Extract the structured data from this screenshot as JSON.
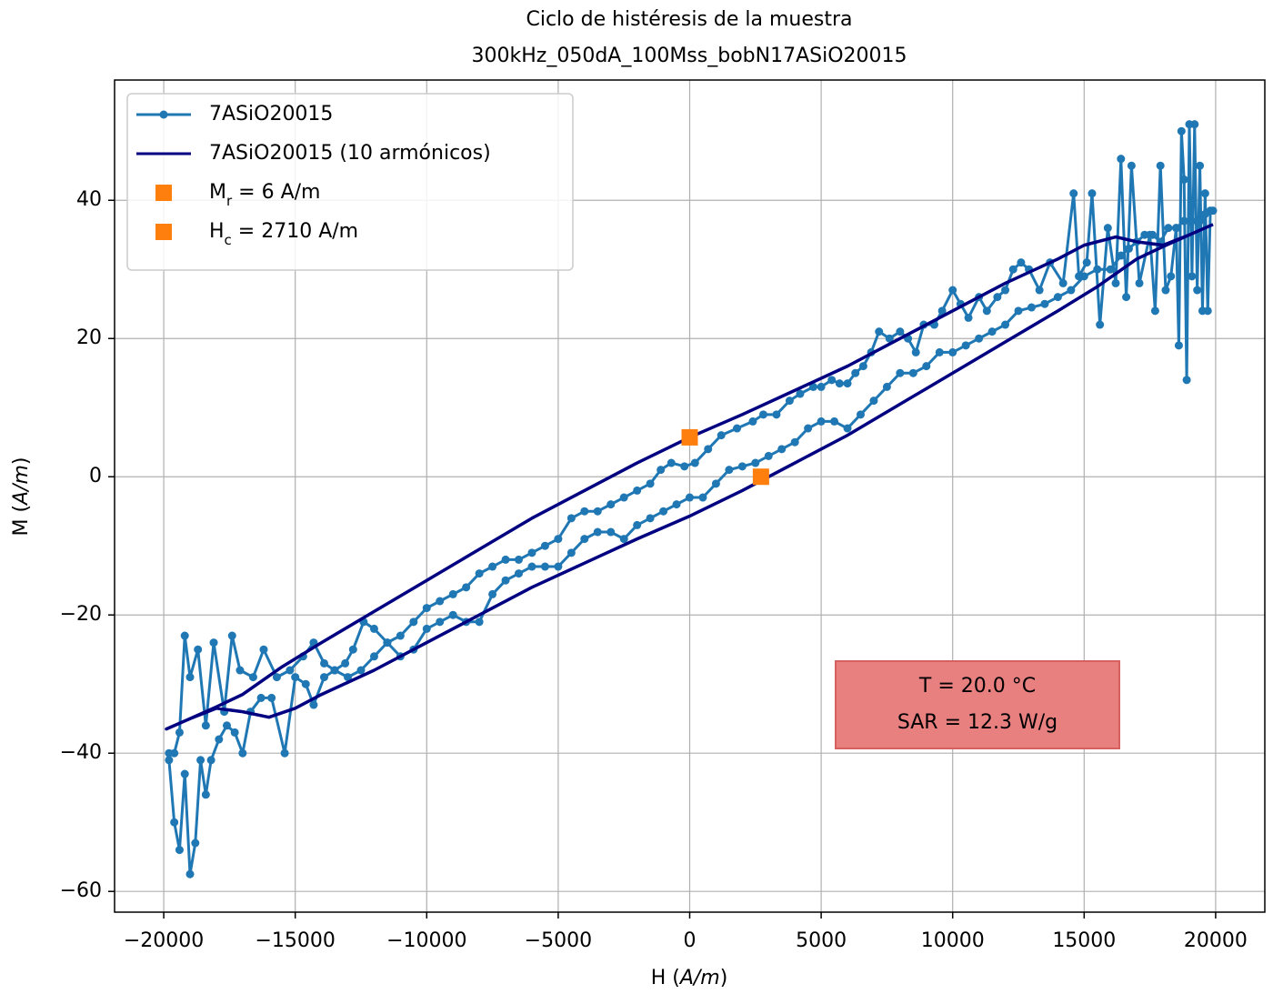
{
  "chart_data": {
    "type": "line",
    "title": [
      "Ciclo de histéresis de la muestra",
      "300kHz_050dA_100Mss_bobN17ASiO20015"
    ],
    "xlabel": [
      "H (",
      "A/m",
      ")"
    ],
    "ylabel": [
      "M (",
      "A/m",
      ")"
    ],
    "xlim": [
      -21870,
      21870
    ],
    "ylim": [
      -63,
      57.4
    ],
    "xticks": [
      {
        "value": -20000,
        "label": "−20000"
      },
      {
        "value": -15000,
        "label": "−15000"
      },
      {
        "value": -10000,
        "label": "−10000"
      },
      {
        "value": -5000,
        "label": "−5000"
      },
      0,
      5000,
      10000,
      15000,
      20000
    ],
    "yticks": [
      {
        "value": -60,
        "label": "−60"
      },
      {
        "value": -40,
        "label": "−40"
      },
      {
        "value": -20,
        "label": "−20"
      },
      0,
      20,
      40
    ],
    "grid": true,
    "legend": "upper-left",
    "annotation": [
      "T = 20.0 °C",
      "SAR = 12.3 W/g"
    ],
    "series": [
      {
        "name": [
          "7ASiO20015"
        ],
        "color": "#1f77b4",
        "style": "line-marker",
        "x": [
          19800,
          19700,
          19600,
          19500,
          19400,
          19300,
          19200,
          19100,
          19000,
          18900,
          18800,
          18700,
          18600,
          18500,
          18300,
          18100,
          17900,
          17700,
          17500,
          17100,
          16800,
          16600,
          16400,
          16200,
          15900,
          15600,
          15300,
          15100,
          14800,
          14600,
          14200,
          13700,
          13300,
          12900,
          12600,
          12300,
          12000,
          11700,
          11300,
          11000,
          10600,
          10300,
          10000,
          9600,
          9300,
          8900,
          8600,
          8300,
          8000,
          7600,
          7200,
          6900,
          6600,
          6300,
          6000,
          5700,
          5400,
          5000,
          4700,
          4200,
          3800,
          3300,
          2800,
          2400,
          1800,
          1200,
          700,
          200,
          -200,
          -700,
          -1100,
          -1500,
          -2000,
          -2500,
          -3000,
          -3500,
          -4000,
          -4500,
          -5000,
          -5500,
          -6000,
          -6500,
          -7000,
          -7500,
          -8000,
          -8500,
          -9000,
          -9500,
          -10000,
          -10500,
          -11000,
          -11500,
          -12000,
          -12400,
          -12800,
          -13100,
          -13500,
          -13900,
          -14300,
          -14700,
          -15200,
          -15700,
          -16200,
          -16600,
          -17100,
          -17400,
          -17700,
          -18100,
          -18400,
          -18700,
          -19000,
          -19200,
          -19400,
          -19600,
          -19800,
          -19800,
          -19600,
          -19400,
          -19200,
          -19000,
          -18800,
          -18600,
          -18400,
          -18200,
          -17900,
          -17600,
          -17300,
          -17000,
          -16700,
          -16300,
          -15900,
          -15400,
          -15000,
          -14600,
          -14300,
          -13900,
          -13500,
          -13000,
          -12500,
          -12000,
          -11500,
          -11000,
          -10500,
          -10000,
          -9500,
          -9000,
          -8500,
          -8000,
          -7500,
          -7000,
          -6500,
          -6000,
          -5500,
          -5000,
          -4500,
          -4000,
          -3500,
          -3000,
          -2500,
          -2000,
          -1500,
          -1000,
          -500,
          0,
          500,
          1000,
          1500,
          2000,
          2500,
          3000,
          3500,
          4000,
          4500,
          5000,
          5500,
          6000,
          6500,
          7000,
          7500,
          8000,
          8500,
          9000,
          9500,
          10000,
          10500,
          11000,
          11500,
          12000,
          12500,
          13000,
          13500,
          14000,
          14500,
          15000,
          15500,
          16000,
          16400,
          16700,
          17000,
          17300,
          17600,
          17900,
          18200,
          18500,
          18800,
          19100,
          19400,
          19600,
          19900
        ],
        "y": [
          38.5,
          24,
          41,
          24,
          45,
          27,
          51,
          29,
          51,
          14,
          43,
          50,
          19,
          36,
          29,
          27,
          45,
          24,
          35,
          28,
          45,
          26,
          46,
          28,
          36,
          22,
          41,
          31,
          29,
          41,
          28,
          31,
          27,
          30,
          31,
          30,
          27,
          26,
          24,
          26,
          23,
          25,
          27,
          24,
          22,
          22,
          18,
          20,
          21,
          20,
          21,
          18,
          16,
          15,
          13.5,
          13.5,
          14,
          13,
          13,
          12,
          11,
          9,
          9,
          8,
          7,
          6,
          4,
          2,
          1.5,
          2,
          1,
          -1,
          -2,
          -3,
          -4,
          -5,
          -5,
          -6,
          -9,
          -10,
          -11,
          -12,
          -12,
          -13,
          -14,
          -16,
          -17,
          -18,
          -19,
          -21,
          -23,
          -24,
          -22,
          -21,
          -25,
          -27,
          -28,
          -27,
          -24,
          -26,
          -28,
          -29,
          -25,
          -29,
          -28,
          -23,
          -34,
          -24,
          -36,
          -25,
          -29,
          -23,
          -37,
          -40,
          -40,
          -41,
          -50,
          -54,
          -43,
          -57.5,
          -53,
          -41,
          -46,
          -41,
          -38,
          -36,
          -37,
          -40,
          -34,
          -32,
          -32,
          -40,
          -29,
          -30,
          -33,
          -29,
          -28,
          -29,
          -28,
          -26,
          -24,
          -26,
          -25,
          -22,
          -21,
          -20,
          -21,
          -21,
          -17,
          -15,
          -14,
          -13,
          -13,
          -13,
          -11,
          -9,
          -8,
          -8,
          -9,
          -7,
          -6,
          -5,
          -4,
          -3,
          -3,
          -1,
          1,
          1.5,
          2,
          3,
          4,
          5,
          7,
          8,
          8,
          7,
          9,
          11,
          13,
          15,
          15,
          16,
          18,
          18,
          19,
          20,
          21,
          22,
          24,
          24.5,
          25,
          26,
          27,
          29,
          30,
          30,
          32,
          33,
          34,
          35,
          35,
          34,
          36,
          36,
          37,
          37,
          37,
          38,
          38.5
        ]
      },
      {
        "name": [
          "7ASiO20015 (10 armónicos)"
        ],
        "color": "#000080",
        "style": "line",
        "x": [
          19900,
          19000,
          18000,
          17000,
          16200,
          15000,
          14000,
          12000,
          10000,
          8000,
          6000,
          4000,
          2000,
          0,
          -2000,
          -4000,
          -6000,
          -8000,
          -10000,
          -12000,
          -14000,
          -15500,
          -17000,
          -18000,
          -19000,
          -19900,
          -19000,
          -18000,
          -17000,
          -16000,
          -15000,
          -14000,
          -12000,
          -10000,
          -8000,
          -6000,
          -4000,
          -2000,
          0,
          2000,
          4000,
          6000,
          8000,
          10000,
          12000,
          14000,
          15500,
          17000,
          18000,
          19000,
          19900
        ],
        "y": [
          36.5,
          35,
          33.5,
          34,
          34.7,
          33.5,
          31.5,
          28,
          24,
          20,
          16,
          12.5,
          9,
          5.7,
          2,
          -2,
          -6,
          -10.5,
          -15,
          -19.5,
          -24,
          -27.5,
          -31.5,
          -33.3,
          -35,
          -36.5,
          -35,
          -33.5,
          -34,
          -34.8,
          -33.5,
          -31.5,
          -28,
          -24,
          -20,
          -16,
          -12.5,
          -9,
          -5.7,
          -2,
          2,
          6,
          10.5,
          15,
          19.5,
          24,
          27.5,
          31.5,
          33.3,
          35,
          36.5
        ]
      },
      {
        "name": [
          "M",
          "r",
          " = 6 A/m"
        ],
        "color": "#ff7f0e",
        "style": "square",
        "x": [
          0
        ],
        "y": [
          5.7
        ]
      },
      {
        "name": [
          "H",
          "c",
          " = 2710 A/m"
        ],
        "color": "#ff7f0e",
        "style": "square",
        "x": [
          2710
        ],
        "y": [
          0
        ]
      }
    ]
  }
}
